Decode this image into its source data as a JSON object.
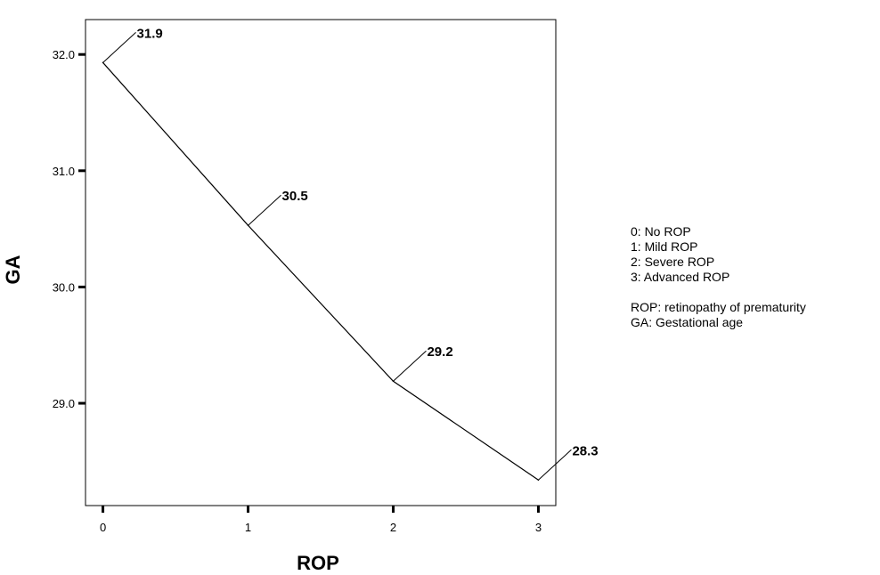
{
  "chart_data": {
    "type": "line",
    "xlabel": "ROP",
    "ylabel": "GA",
    "x": [
      0,
      1,
      2,
      3
    ],
    "x_tick_labels": [
      "0",
      "1",
      "2",
      "3"
    ],
    "y_ticks": [
      29.0,
      30.0,
      31.0,
      32.0
    ],
    "y_tick_labels": [
      "29.0",
      "30.0",
      "31.0",
      "32.0"
    ],
    "xlim": [
      -0.12,
      3.12
    ],
    "ylim": [
      28.12,
      32.3
    ],
    "series": [
      {
        "values": [
          31.93,
          30.53,
          29.19,
          28.34
        ],
        "data_labels": [
          "31.9",
          "30.5",
          "29.2",
          "28.3"
        ]
      }
    ],
    "grid": false,
    "line_color": "#000000"
  },
  "legend": {
    "codes": [
      "0: No ROP",
      "1: Mild ROP",
      "2: Severe ROP",
      "3: Advanced ROP"
    ],
    "notes": [
      "ROP: retinopathy of prematurity",
      "GA: Gestational age"
    ]
  }
}
